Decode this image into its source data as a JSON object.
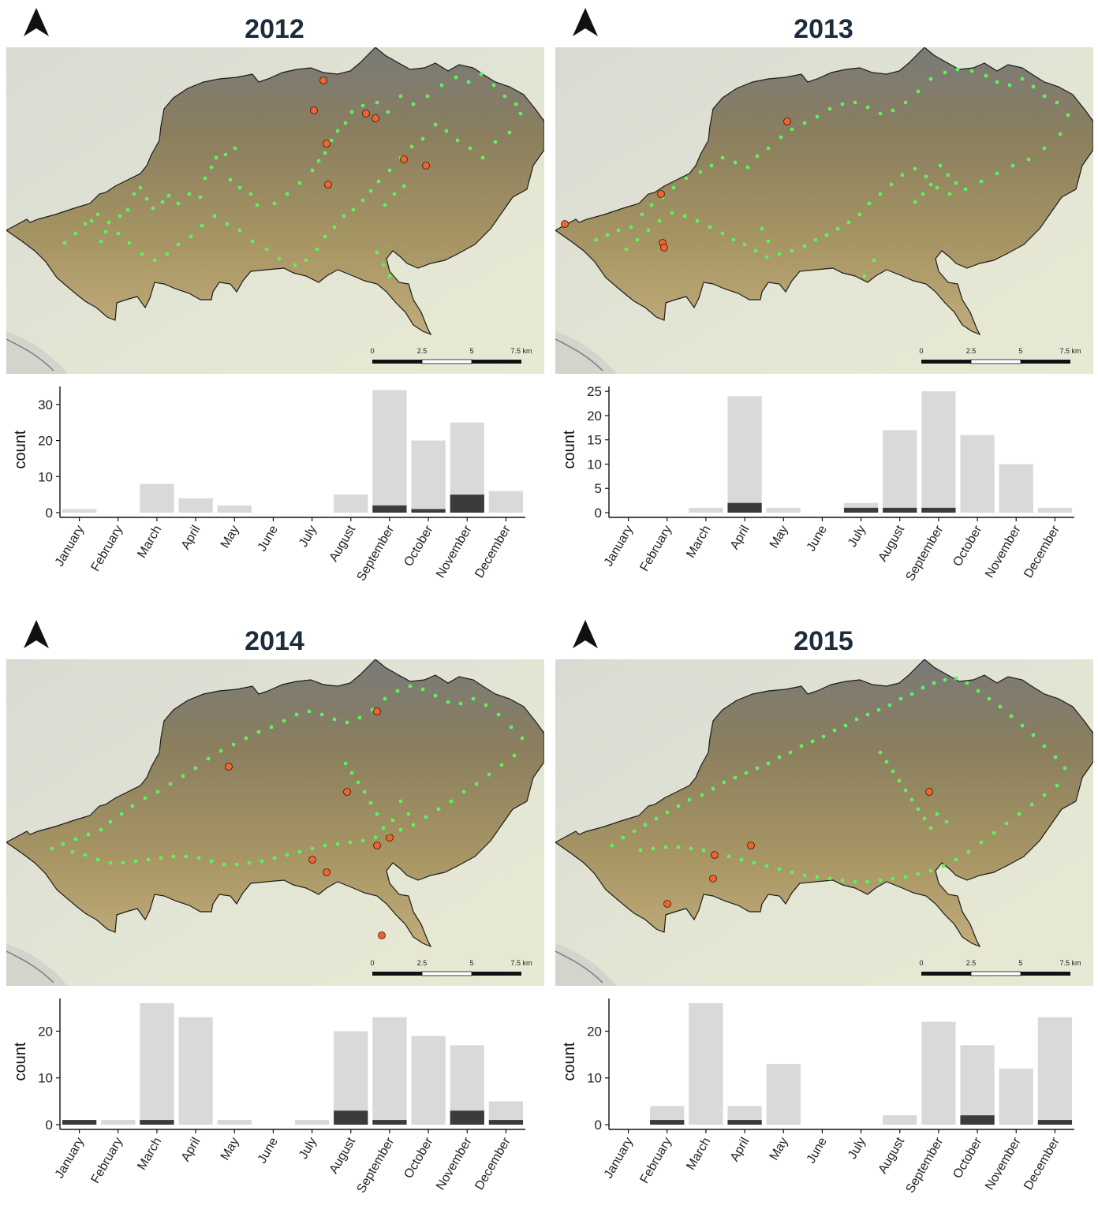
{
  "months": [
    "January",
    "February",
    "March",
    "April",
    "May",
    "June",
    "July",
    "August",
    "September",
    "October",
    "November",
    "December"
  ],
  "y_axis_label": "count",
  "scale_bar": {
    "ticks": [
      "0",
      "2.5",
      "5",
      "7.5 km"
    ]
  },
  "colors": {
    "total_bar": "#d9d9d9",
    "highlight_bar": "#3b3b3b",
    "green_point": "#5ef25e",
    "orange_point": "#f0642d",
    "title": "#1e2d3d"
  },
  "chart_data": [
    {
      "type": "bar",
      "title": "2012",
      "xlabel": "",
      "ylabel": "count",
      "categories": [
        "January",
        "February",
        "March",
        "April",
        "May",
        "June",
        "July",
        "August",
        "September",
        "October",
        "November",
        "December"
      ],
      "ylim": [
        0,
        35
      ],
      "yticks": [
        0,
        10,
        20,
        30
      ],
      "series": [
        {
          "values": [
            1,
            0,
            8,
            4,
            2,
            0,
            0,
            5,
            34,
            20,
            25,
            6
          ]
        },
        {
          "values": [
            0,
            0,
            0,
            0,
            0,
            0,
            0,
            0,
            2,
            1,
            5,
            0
          ]
        }
      ]
    },
    {
      "type": "bar",
      "title": "2013",
      "xlabel": "",
      "ylabel": "count",
      "categories": [
        "January",
        "February",
        "March",
        "April",
        "May",
        "June",
        "July",
        "August",
        "September",
        "October",
        "November",
        "December"
      ],
      "ylim": [
        0,
        26
      ],
      "yticks": [
        0,
        5,
        10,
        15,
        20,
        25
      ],
      "series": [
        {
          "values": [
            0,
            0,
            1,
            24,
            1,
            0,
            2,
            17,
            25,
            16,
            10,
            1
          ]
        },
        {
          "values": [
            0,
            0,
            0,
            2,
            0,
            0,
            1,
            1,
            1,
            0,
            0,
            0
          ]
        }
      ]
    },
    {
      "type": "bar",
      "title": "2014",
      "xlabel": "",
      "ylabel": "count",
      "categories": [
        "January",
        "February",
        "March",
        "April",
        "May",
        "June",
        "July",
        "August",
        "September",
        "October",
        "November",
        "December"
      ],
      "ylim": [
        0,
        27
      ],
      "yticks": [
        0,
        10,
        20
      ],
      "series": [
        {
          "values": [
            1,
            1,
            26,
            23,
            1,
            0,
            1,
            20,
            23,
            19,
            17,
            5
          ]
        },
        {
          "values": [
            1,
            0,
            1,
            0,
            0,
            0,
            0,
            3,
            1,
            0,
            3,
            1
          ]
        }
      ]
    },
    {
      "type": "bar",
      "title": "2015",
      "xlabel": "",
      "ylabel": "count",
      "categories": [
        "January",
        "February",
        "March",
        "April",
        "May",
        "June",
        "July",
        "August",
        "September",
        "October",
        "November",
        "December"
      ],
      "ylim": [
        0,
        27
      ],
      "yticks": [
        0,
        10,
        20
      ],
      "series": [
        {
          "values": [
            0,
            4,
            26,
            4,
            13,
            0,
            0,
            2,
            22,
            17,
            12,
            23
          ]
        },
        {
          "values": [
            0,
            1,
            0,
            1,
            0,
            0,
            0,
            0,
            0,
            2,
            0,
            1
          ]
        }
      ]
    }
  ]
}
